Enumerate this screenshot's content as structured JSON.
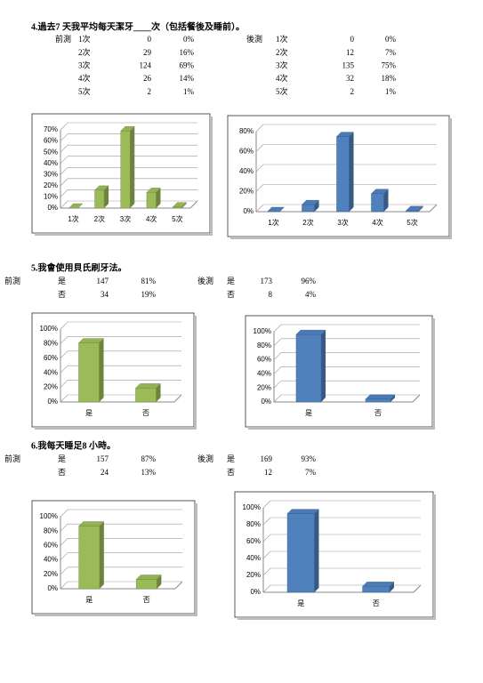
{
  "sections": [
    {
      "title": "4.過去7 天我平均每天潔牙____次（包括餐後及睡前）。",
      "pre": {
        "label": "前測",
        "rows": [
          {
            "option": "1次",
            "count": 0,
            "percent": "0%"
          },
          {
            "option": "2次",
            "count": 29,
            "percent": "16%"
          },
          {
            "option": "3次",
            "count": 124,
            "percent": "69%"
          },
          {
            "option": "4次",
            "count": 26,
            "percent": "14%"
          },
          {
            "option": "5次",
            "count": 2,
            "percent": "1%"
          }
        ]
      },
      "post": {
        "label": "後測",
        "rows": [
          {
            "option": "1次",
            "count": 0,
            "percent": "0%"
          },
          {
            "option": "2次",
            "count": 12,
            "percent": "7%"
          },
          {
            "option": "3次",
            "count": 135,
            "percent": "75%"
          },
          {
            "option": "4次",
            "count": 32,
            "percent": "18%"
          },
          {
            "option": "5次",
            "count": 2,
            "percent": "1%"
          }
        ]
      },
      "charts": [
        {
          "type": "bar",
          "color": "#9bbb59",
          "categories": [
            "1次",
            "2次",
            "3次",
            "4次",
            "5次"
          ],
          "values": [
            0,
            16,
            69,
            14,
            1
          ],
          "ylim": [
            0,
            70
          ],
          "yticks": [
            {
              "value": 0,
              "label": "0%"
            },
            {
              "value": 10,
              "label": "10%"
            },
            {
              "value": 20,
              "label": "20%"
            },
            {
              "value": 30,
              "label": "30%"
            },
            {
              "value": 40,
              "label": "40%"
            },
            {
              "value": 50,
              "label": "50%"
            },
            {
              "value": 60,
              "label": "60%"
            },
            {
              "value": 70,
              "label": "70%"
            }
          ]
        },
        {
          "type": "bar",
          "color": "#4f81bd",
          "categories": [
            "1次",
            "2次",
            "3次",
            "4次",
            "5次"
          ],
          "values": [
            0,
            7,
            75,
            18,
            1
          ],
          "ylim": [
            0,
            80
          ],
          "yticks": [
            {
              "value": 0,
              "label": "0%"
            },
            {
              "value": 20,
              "label": "20%"
            },
            {
              "value": 40,
              "label": "40%"
            },
            {
              "value": 60,
              "label": "60%"
            },
            {
              "value": 80,
              "label": "80%"
            }
          ]
        }
      ]
    },
    {
      "title": "5.我會使用貝氏刷牙法。",
      "pre": {
        "label": "前測",
        "rows": [
          {
            "option": "是",
            "count": 147,
            "percent": "81%"
          },
          {
            "option": "否",
            "count": 34,
            "percent": "19%"
          }
        ]
      },
      "post": {
        "label": "後測",
        "rows": [
          {
            "option": "是",
            "count": 173,
            "percent": "96%"
          },
          {
            "option": "否",
            "count": 8,
            "percent": "4%"
          }
        ]
      },
      "charts": [
        {
          "type": "bar",
          "color": "#9bbb59",
          "categories": [
            "是",
            "否"
          ],
          "values": [
            81,
            19
          ],
          "ylim": [
            0,
            100
          ],
          "yticks": [
            {
              "value": 0,
              "label": "0%"
            },
            {
              "value": 20,
              "label": "20%"
            },
            {
              "value": 40,
              "label": "40%"
            },
            {
              "value": 60,
              "label": "60%"
            },
            {
              "value": 80,
              "label": "80%"
            },
            {
              "value": 100,
              "label": "100%"
            }
          ]
        },
        {
          "type": "bar",
          "color": "#4f81bd",
          "categories": [
            "是",
            "否"
          ],
          "values": [
            96,
            4
          ],
          "ylim": [
            0,
            100
          ],
          "yticks": [
            {
              "value": 0,
              "label": "0%"
            },
            {
              "value": 20,
              "label": "20%"
            },
            {
              "value": 40,
              "label": "40%"
            },
            {
              "value": 60,
              "label": "60%"
            },
            {
              "value": 80,
              "label": "80%"
            },
            {
              "value": 100,
              "label": "100%"
            }
          ]
        }
      ]
    },
    {
      "title": "6.我每天睡足8 小時。",
      "pre": {
        "label": "前測",
        "rows": [
          {
            "option": "是",
            "count": 157,
            "percent": "87%"
          },
          {
            "option": "否",
            "count": 24,
            "percent": "13%"
          }
        ]
      },
      "post": {
        "label": "後測",
        "rows": [
          {
            "option": "是",
            "count": 169,
            "percent": "93%"
          },
          {
            "option": "否",
            "count": 12,
            "percent": "7%"
          }
        ]
      },
      "charts": [
        {
          "type": "bar",
          "color": "#9bbb59",
          "categories": [
            "是",
            "否"
          ],
          "values": [
            87,
            13
          ],
          "ylim": [
            0,
            100
          ],
          "yticks": [
            {
              "value": 0,
              "label": "0%"
            },
            {
              "value": 20,
              "label": "20%"
            },
            {
              "value": 40,
              "label": "40%"
            },
            {
              "value": 60,
              "label": "60%"
            },
            {
              "value": 80,
              "label": "80%"
            },
            {
              "value": 100,
              "label": "100%"
            }
          ]
        },
        {
          "type": "bar",
          "color": "#4f81bd",
          "categories": [
            "是",
            "否"
          ],
          "values": [
            93,
            7
          ],
          "ylim": [
            0,
            100
          ],
          "yticks": [
            {
              "value": 0,
              "label": "0%"
            },
            {
              "value": 20,
              "label": "20%"
            },
            {
              "value": 40,
              "label": "40%"
            },
            {
              "value": 60,
              "label": "60%"
            },
            {
              "value": 80,
              "label": "80%"
            },
            {
              "value": 100,
              "label": "100%"
            }
          ]
        }
      ]
    }
  ]
}
